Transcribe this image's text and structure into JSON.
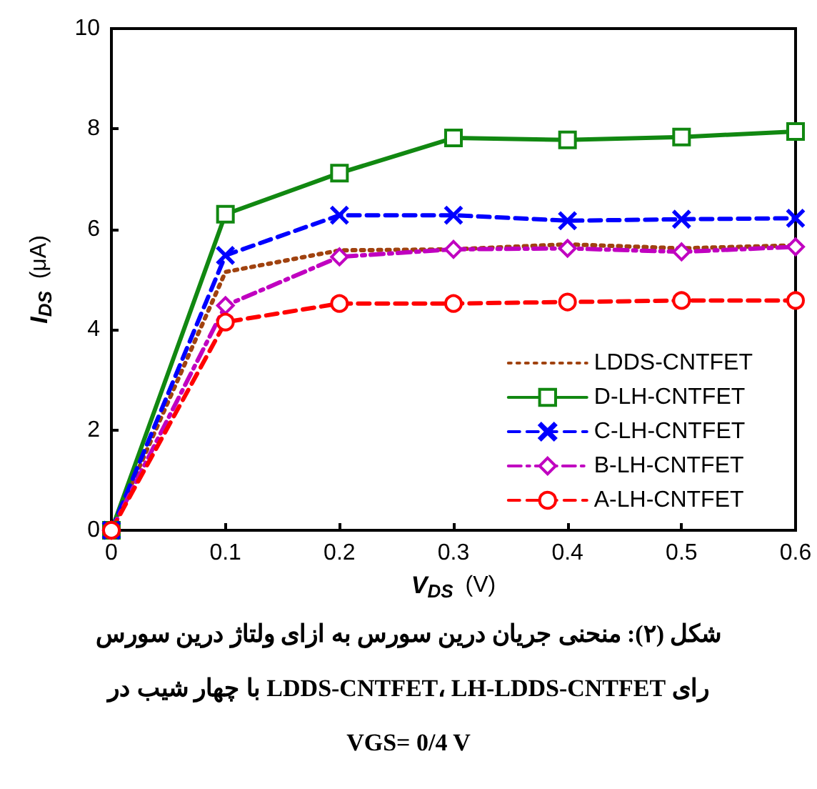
{
  "chart_data": {
    "type": "line",
    "xlabel": "V$_{DS}$ (V)",
    "ylabel": "I$_{DS}$ (μA)",
    "x": [
      0,
      0.1,
      0.2,
      0.3,
      0.4,
      0.5,
      0.6
    ],
    "xlim": [
      0,
      0.6
    ],
    "xticks": [
      0,
      0.1,
      0.2,
      0.3,
      0.4,
      0.5,
      0.6
    ],
    "ylim": [
      0,
      10
    ],
    "yticks": [
      0,
      2,
      4,
      6,
      8,
      10
    ],
    "grid": false,
    "legend": "bottom right",
    "series": [
      {
        "name": "LDDS-CNTFET",
        "color": "#a0420f",
        "marker": "none",
        "line_style": "dotted",
        "values": [
          0,
          5.15,
          5.58,
          5.6,
          5.7,
          5.62,
          5.68
        ]
      },
      {
        "name": "D-LH-CNTFET",
        "color": "#118811",
        "marker": "square",
        "line_style": "solid",
        "values": [
          0,
          6.3,
          7.12,
          7.82,
          7.78,
          7.84,
          7.95
        ]
      },
      {
        "name": "C-LH-CNTFET",
        "color": "#0000ff",
        "marker": "cross",
        "line_style": "dashed",
        "values": [
          0,
          5.48,
          6.28,
          6.28,
          6.17,
          6.2,
          6.22
        ]
      },
      {
        "name": "B-LH-CNTFET",
        "color": "#c000c0",
        "marker": "diamond",
        "line_style": "dashdot",
        "values": [
          0,
          4.48,
          5.45,
          5.6,
          5.62,
          5.55,
          5.65
        ]
      },
      {
        "name": "A-LH-CNTFET",
        "color": "#ff0000",
        "marker": "circle",
        "line_style": "dashed",
        "values": [
          0,
          4.15,
          4.52,
          4.52,
          4.55,
          4.58,
          4.58
        ]
      }
    ],
    "annotations": [
      "شکل (۲):  منحنی جریان درین سورس به ازای ولتاژ درین سورس",
      "رای LDDS-CNTFET، LH-LDDS-CNTFET  با چهار شیب در",
      "VGS= 0/4 V"
    ]
  }
}
